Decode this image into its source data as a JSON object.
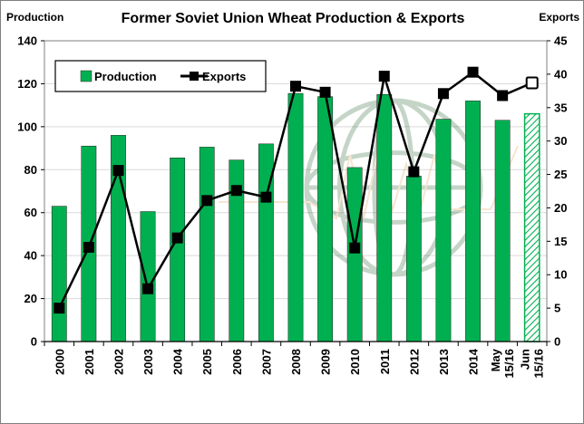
{
  "chart_data": {
    "type": "bar",
    "title": "Former Soviet Union Wheat Production & Exports",
    "ylabel_left": "Production",
    "ylabel_right": "Exports",
    "ylim_left": [
      0,
      140
    ],
    "ylim_right": [
      0,
      45
    ],
    "yticks_left": [
      0,
      20,
      40,
      60,
      80,
      100,
      120,
      140
    ],
    "yticks_right": [
      0,
      5,
      10,
      15,
      20,
      25,
      30,
      35,
      40,
      45
    ],
    "grid": true,
    "legend_placement": "top-left",
    "categories": [
      "2000",
      "2001",
      "2002",
      "2003",
      "2004",
      "2005",
      "2006",
      "2007",
      "2008",
      "2009",
      "2010",
      "2011",
      "2012",
      "2013",
      "2014",
      "May 15/16",
      "Jun 15/16"
    ],
    "series": [
      {
        "name": "Production",
        "type": "bar",
        "axis": "left",
        "color": "#00b050",
        "values": [
          63,
          91,
          96,
          60.5,
          85.5,
          90.5,
          84.5,
          92,
          115.5,
          114,
          81,
          115,
          77,
          103.5,
          112,
          103,
          106
        ],
        "projected_index": 16
      },
      {
        "name": "Exports",
        "type": "line",
        "axis": "right",
        "color": "#000000",
        "values": [
          5,
          14.1,
          25.6,
          7.9,
          15.5,
          21.1,
          22.6,
          21.6,
          38.2,
          37.3,
          14,
          39.7,
          25.4,
          37.1,
          40.3,
          36.8,
          38.7
        ],
        "projected_index": 16
      }
    ]
  }
}
